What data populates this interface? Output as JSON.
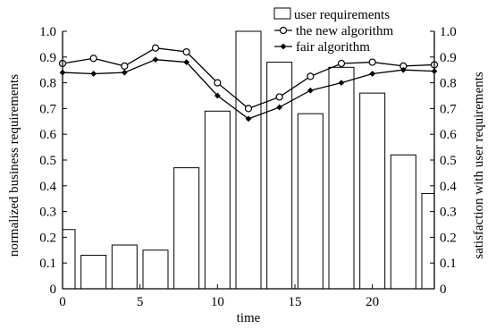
{
  "chart_data": {
    "type": "bar+line",
    "x_axis": {
      "label": "time",
      "range": [
        0,
        24
      ],
      "ticks": [
        0,
        5,
        10,
        15,
        20
      ]
    },
    "y_axis_left": {
      "label": "normalized business requirements",
      "range": [
        0,
        1.0
      ],
      "ticks": [
        0,
        0.1,
        0.2,
        0.3,
        0.4,
        0.5,
        0.6,
        0.7,
        0.8,
        0.9,
        1.0
      ],
      "tick_labels": [
        "0",
        "0.1",
        "0.2",
        "0.3",
        "0.4",
        "0.5",
        "0.6",
        "0.7",
        "0.8",
        "0.9",
        "1.0"
      ]
    },
    "y_axis_right": {
      "label": "satisfaction with user requirements",
      "range": [
        0,
        1.0
      ],
      "ticks": [
        0,
        0.1,
        0.2,
        0.3,
        0.4,
        0.5,
        0.6,
        0.7,
        0.8,
        0.9,
        1.0
      ],
      "tick_labels": [
        "0",
        "0.1",
        "0.2",
        "0.3",
        "0.4",
        "0.5",
        "0.6",
        "0.7",
        "0.8",
        "0.9",
        "1.0"
      ]
    },
    "bars": {
      "name": "user requirements",
      "x": [
        0,
        2,
        4,
        6,
        8,
        10,
        12,
        14,
        16,
        18,
        20,
        22,
        24
      ],
      "values": [
        0.23,
        0.13,
        0.17,
        0.15,
        0.47,
        0.69,
        1.0,
        0.88,
        0.68,
        0.86,
        0.76,
        0.52,
        0.37
      ]
    },
    "series": [
      {
        "name": "the new algorithm",
        "marker": "open-circle",
        "x": [
          0,
          2,
          4,
          6,
          8,
          10,
          12,
          14,
          16,
          18,
          20,
          22,
          24
        ],
        "values": [
          0.875,
          0.895,
          0.865,
          0.935,
          0.92,
          0.8,
          0.7,
          0.745,
          0.825,
          0.875,
          0.88,
          0.865,
          0.87
        ]
      },
      {
        "name": "fair algorithm",
        "marker": "filled-diamond",
        "x": [
          0,
          2,
          4,
          6,
          8,
          10,
          12,
          14,
          16,
          18,
          20,
          22,
          24
        ],
        "values": [
          0.84,
          0.835,
          0.84,
          0.89,
          0.88,
          0.75,
          0.66,
          0.705,
          0.77,
          0.8,
          0.835,
          0.85,
          0.845
        ]
      }
    ],
    "legend": {
      "position": "top-right",
      "entries": [
        "user requirements",
        "the new algorithm",
        "fair algorithm"
      ]
    },
    "grid": false
  }
}
